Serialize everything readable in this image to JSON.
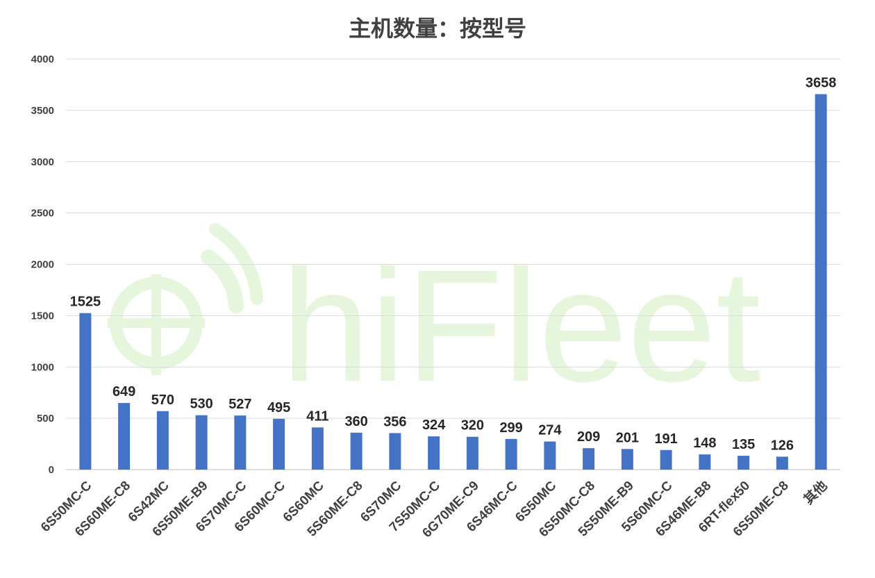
{
  "chart_data": {
    "type": "bar",
    "title": "主机数量：按型号",
    "xlabel": "",
    "ylabel": "",
    "ylim": [
      0,
      4000
    ],
    "yticks": [
      0,
      500,
      1000,
      1500,
      2000,
      2500,
      3000,
      3500,
      4000
    ],
    "grid": true,
    "legend": "none",
    "bar_color": "#4472c4",
    "categories": [
      "6S50MC-C",
      "6S60ME-C8",
      "6S42MC",
      "6S50ME-B9",
      "6S70MC-C",
      "6S60MC-C",
      "6S60MC",
      "5S60ME-C8",
      "6S70MC",
      "7S50MC-C",
      "6G70ME-C9",
      "6S46MC-C",
      "6S50MC",
      "6S50MC-C8",
      "5S50ME-B9",
      "5S60MC-C",
      "6S46ME-B8",
      "6RT-flex50",
      "6S50ME-C8",
      "其他"
    ],
    "values": [
      1525,
      649,
      570,
      530,
      527,
      495,
      411,
      360,
      356,
      324,
      320,
      299,
      274,
      209,
      201,
      191,
      148,
      135,
      126,
      3658
    ]
  },
  "watermark": {
    "text": "hiFleet",
    "color": "#e6f6dc"
  }
}
